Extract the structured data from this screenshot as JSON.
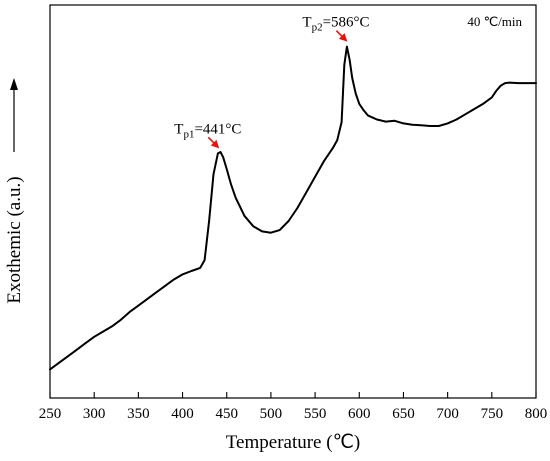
{
  "chart_data": {
    "type": "line",
    "xlabel": "Temperature (℃)",
    "ylabel": "Exothemic (a.u.)",
    "xlim": [
      250,
      800
    ],
    "x_ticks": [
      250,
      300,
      350,
      400,
      450,
      500,
      550,
      600,
      650,
      700,
      750,
      800
    ],
    "y_ticks_shown": false,
    "grid": false,
    "legend": "none",
    "heating_rate_label": "40 ℃/min",
    "annotations": [
      {
        "sym": "T",
        "sub": "p1",
        "rest": "=441°C",
        "x": 441,
        "arrow_color": "#e8110f"
      },
      {
        "sym": "T",
        "sub": "p2",
        "rest": "=586°C",
        "x": 586,
        "arrow_color": "#e8110f"
      }
    ],
    "series": [
      {
        "color": "#000000",
        "x": [
          250,
          260,
          270,
          280,
          290,
          300,
          310,
          320,
          330,
          340,
          350,
          360,
          370,
          380,
          390,
          400,
          410,
          420,
          425,
          430,
          435,
          440,
          443,
          446,
          450,
          455,
          460,
          470,
          480,
          490,
          500,
          510,
          520,
          530,
          540,
          550,
          560,
          570,
          575,
          580,
          583,
          586,
          589,
          592,
          596,
          600,
          605,
          610,
          620,
          630,
          640,
          650,
          660,
          670,
          680,
          690,
          700,
          710,
          720,
          730,
          740,
          750,
          755,
          760,
          765,
          770,
          780,
          790,
          800
        ],
        "y": [
          5.0,
          7.5,
          10.0,
          12.5,
          15.0,
          17.5,
          19.5,
          21.5,
          24.0,
          27.0,
          29.5,
          32.0,
          34.5,
          37.0,
          39.5,
          41.5,
          42.8,
          44.0,
          47.0,
          62.0,
          80.0,
          88.0,
          88.5,
          86.5,
          82.0,
          76.0,
          71.0,
          64.0,
          60.0,
          58.0,
          57.5,
          58.5,
          62.0,
          67.0,
          73.0,
          79.0,
          85.0,
          90.0,
          93.0,
          100.0,
          122.0,
          129.0,
          124.0,
          117.0,
          111.0,
          107.0,
          104.5,
          102.5,
          101.0,
          100.2,
          100.5,
          99.5,
          99.0,
          98.8,
          98.5,
          98.5,
          99.5,
          101.0,
          103.0,
          105.0,
          107.0,
          109.5,
          112.0,
          114.0,
          115.0,
          115.2,
          115.0,
          115.0,
          115.0
        ]
      }
    ]
  }
}
